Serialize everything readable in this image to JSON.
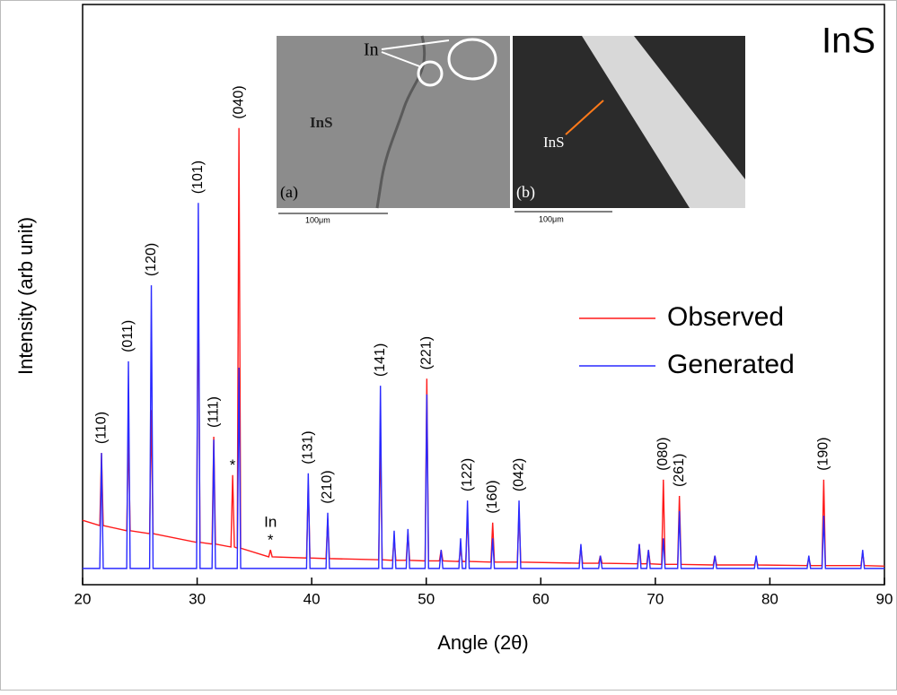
{
  "chart_data": {
    "type": "line",
    "panel_label": "InS",
    "xlabel": "Angle (2θ)",
    "ylabel": "Intensity (arb unit)",
    "xlim": [
      20,
      90
    ],
    "xticks": [
      20,
      30,
      40,
      50,
      60,
      70,
      80,
      90
    ],
    "ylim": [
      0,
      100
    ],
    "legend": "right",
    "x": [
      20,
      21.5,
      21.65,
      21.8,
      23.85,
      24,
      24.15,
      25.85,
      26,
      26.15,
      29.95,
      30.1,
      30.25,
      31.3,
      31.45,
      31.6,
      32.95,
      33.1,
      33.25,
      33.5,
      33.65,
      33.8,
      36.25,
      36.4,
      36.55,
      39.55,
      39.7,
      39.85,
      41.25,
      41.4,
      41.55,
      45.85,
      46,
      46.15,
      47.05,
      47.2,
      47.35,
      48.25,
      48.4,
      48.55,
      49.9,
      50.05,
      50.2,
      51.15,
      51.3,
      51.45,
      52.85,
      53,
      53.15,
      53.45,
      53.6,
      53.75,
      55.65,
      55.8,
      55.95,
      57.95,
      58.1,
      58.25,
      63.35,
      63.5,
      63.65,
      65.05,
      65.2,
      65.35,
      68.45,
      68.6,
      68.75,
      69.25,
      69.4,
      69.55,
      70.55,
      70.7,
      70.85,
      71.95,
      72.1,
      72.25,
      75.05,
      75.2,
      75.35,
      78.65,
      78.8,
      78.95,
      83.25,
      83.4,
      83.55,
      84.55,
      84.7,
      84.85,
      87.95,
      88.1,
      88.25,
      90
    ],
    "series": [
      {
        "name": "Observed",
        "color": "#ff1a1a",
        "values": [
          11.1,
          10.2,
          22.7,
          10.2,
          9.3,
          25.8,
          9.3,
          8.8,
          30.1,
          8.8,
          7.3,
          54,
          7.3,
          7,
          25.5,
          7,
          6.5,
          18.9,
          6.5,
          6.3,
          78.7,
          6.3,
          4.8,
          6,
          4.8,
          4.6,
          17.3,
          4.6,
          4.5,
          11.4,
          4.5,
          4.3,
          25.8,
          4.3,
          4.2,
          8,
          4.2,
          4.2,
          9,
          4.2,
          4.1,
          35.5,
          4.1,
          4.1,
          6,
          4.1,
          4,
          6,
          4,
          4,
          11.9,
          4,
          3.9,
          10.7,
          3.9,
          3.9,
          12.7,
          3.9,
          3.7,
          6.5,
          3.7,
          3.7,
          5,
          3.7,
          3.6,
          7,
          3.6,
          3.6,
          6,
          3.6,
          3.5,
          18.1,
          3.5,
          3.5,
          15.3,
          3.5,
          3.4,
          5,
          3.4,
          3.4,
          4.5,
          3.4,
          3.3,
          4.5,
          3.3,
          3.3,
          18.1,
          3.3,
          3.3,
          5.5,
          3.3,
          3.2
        ]
      },
      {
        "name": "Generated",
        "color": "#2a2aff",
        "values": [
          2.8,
          2.8,
          22.7,
          2.8,
          2.8,
          38.5,
          2.8,
          2.8,
          51.6,
          2.8,
          2.8,
          65.8,
          2.8,
          2.8,
          25,
          2.8,
          2.8,
          2.8,
          2.8,
          2.8,
          37.4,
          2.8,
          2.8,
          2.8,
          2.8,
          2.8,
          19.2,
          2.8,
          2.8,
          12.4,
          2.8,
          2.8,
          34.3,
          2.8,
          2.8,
          9.3,
          2.8,
          2.8,
          9.6,
          2.8,
          2.8,
          32.8,
          2.8,
          2.8,
          6,
          2.8,
          2.8,
          8,
          2.8,
          2.8,
          14.5,
          2.8,
          2.8,
          8,
          2.8,
          2.8,
          14.5,
          2.8,
          2.8,
          7,
          2.8,
          2.8,
          5,
          2.8,
          2.8,
          7,
          2.8,
          2.8,
          6,
          2.8,
          2.8,
          8,
          2.8,
          2.8,
          12.7,
          2.8,
          2.8,
          5,
          2.8,
          2.8,
          5,
          2.8,
          2.8,
          5,
          2.8,
          2.8,
          11.9,
          2.8,
          2.8,
          6,
          2.8,
          2.8
        ]
      }
    ],
    "annotations": [
      {
        "text": "(110)",
        "x": 21.65
      },
      {
        "text": "(011)",
        "x": 24
      },
      {
        "text": "(120)",
        "x": 26
      },
      {
        "text": "(101)",
        "x": 30.1
      },
      {
        "text": "(111)",
        "x": 31.45
      },
      {
        "text": "*",
        "x": 33.1
      },
      {
        "text": "(040)",
        "x": 33.65
      },
      {
        "text": "*",
        "x": 36.4
      },
      {
        "text": "In",
        "x": 36.4
      },
      {
        "text": "(131)",
        "x": 39.7
      },
      {
        "text": "(210)",
        "x": 41.4
      },
      {
        "text": "(141)",
        "x": 46
      },
      {
        "text": "(221)",
        "x": 50.05
      },
      {
        "text": "(122)",
        "x": 53.6
      },
      {
        "text": "(160)",
        "x": 55.8
      },
      {
        "text": "(042)",
        "x": 58.1
      },
      {
        "text": "(080)",
        "x": 70.7
      },
      {
        "text": "(261)",
        "x": 72.1
      },
      {
        "text": "(190)",
        "x": 84.7
      }
    ]
  },
  "insets": {
    "a": {
      "panel": "(a)",
      "label_in": "In",
      "label_ins": "InS",
      "scale": "100μm"
    },
    "b": {
      "panel": "(b)",
      "label_ins": "InS",
      "scale": "100μm"
    }
  }
}
